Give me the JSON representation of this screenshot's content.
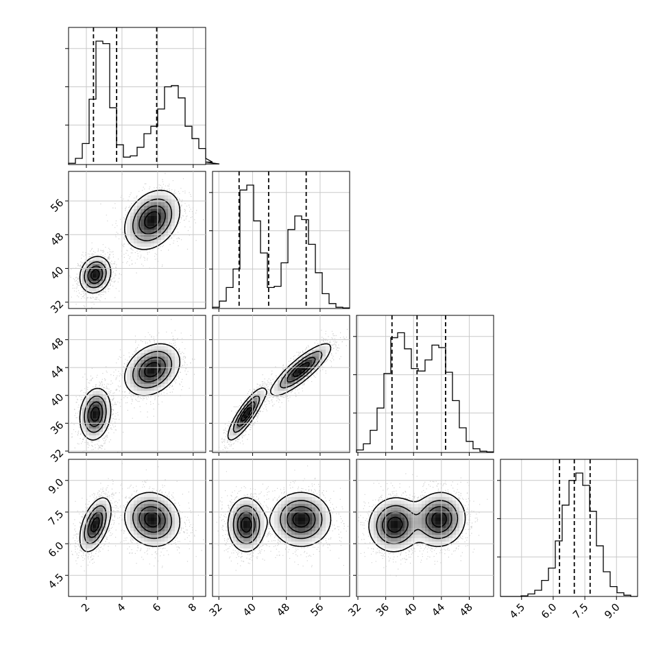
{
  "chart_data": {
    "type": "corner",
    "title": "",
    "parameters": [
      {
        "index": 0,
        "tick_values": [
          2,
          4,
          6,
          8
        ],
        "tick_labels": [
          "2",
          "4",
          "6",
          "8"
        ],
        "range": [
          1.0,
          8.7
        ],
        "quantiles": [
          2.4,
          3.7,
          5.95
        ]
      },
      {
        "index": 1,
        "tick_values": [
          32,
          40,
          48,
          56
        ],
        "tick_labels": [
          "32",
          "40",
          "48",
          "56"
        ],
        "range": [
          30.5,
          63.0
        ],
        "quantiles": [
          36.8,
          43.8,
          52.7
        ]
      },
      {
        "index": 2,
        "tick_values": [
          32,
          36,
          40,
          44,
          48
        ],
        "tick_labels": [
          "32",
          "36",
          "40",
          "44",
          "48"
        ],
        "range": [
          31.8,
          51.5
        ],
        "quantiles": [
          36.9,
          40.5,
          44.6
        ]
      },
      {
        "index": 3,
        "tick_values": [
          4.5,
          6.0,
          7.5,
          9.0
        ],
        "tick_labels": [
          "4.5",
          "6.0",
          "7.5",
          "9.0"
        ],
        "range": [
          3.5,
          10.0
        ],
        "quantiles": [
          6.3,
          7.0,
          7.75
        ]
      }
    ],
    "histograms": [
      {
        "param": 0,
        "bin_start": 1.0,
        "bin_width": 0.385,
        "counts": [
          0.01,
          0.05,
          0.17,
          0.53,
          1.0,
          0.98,
          0.46,
          0.16,
          0.06,
          0.07,
          0.14,
          0.25,
          0.31,
          0.45,
          0.63,
          0.64,
          0.54,
          0.31,
          0.21,
          0.13,
          0.05,
          0.02,
          0.005
        ]
      },
      {
        "param": 1,
        "bin_start": 30.5,
        "bin_width": 1.625,
        "counts": [
          0.01,
          0.06,
          0.17,
          0.32,
          0.96,
          1.0,
          0.71,
          0.45,
          0.17,
          0.18,
          0.37,
          0.64,
          0.75,
          0.72,
          0.52,
          0.29,
          0.12,
          0.04,
          0.01,
          0.005
        ]
      },
      {
        "param": 2,
        "bin_start": 31.8,
        "bin_width": 0.985,
        "counts": [
          0.02,
          0.07,
          0.18,
          0.36,
          0.64,
          0.93,
          0.97,
          0.84,
          0.68,
          0.66,
          0.75,
          0.87,
          0.85,
          0.65,
          0.42,
          0.2,
          0.09,
          0.03,
          0.01,
          0.005
        ]
      },
      {
        "param": 3,
        "bin_start": 3.5,
        "bin_width": 0.325,
        "counts": [
          0.0,
          0.0,
          0.0,
          0.005,
          0.02,
          0.05,
          0.13,
          0.23,
          0.45,
          0.74,
          0.94,
          1.0,
          0.9,
          0.69,
          0.41,
          0.2,
          0.08,
          0.03,
          0.01,
          0.0
        ]
      }
    ],
    "pairs": [
      {
        "x": 0,
        "y": 1,
        "modes": [
          {
            "x": 2.5,
            "y": 38.5,
            "sx": 0.42,
            "sy": 2.1,
            "rho": 0.15,
            "w": 0.5
          },
          {
            "x": 5.7,
            "y": 51.5,
            "sx": 0.75,
            "sy": 3.4,
            "rho": 0.3,
            "w": 0.5
          }
        ]
      },
      {
        "x": 0,
        "y": 2,
        "modes": [
          {
            "x": 2.5,
            "y": 37.3,
            "sx": 0.42,
            "sy": 1.8,
            "rho": 0.15,
            "w": 0.5
          },
          {
            "x": 5.7,
            "y": 43.7,
            "sx": 0.75,
            "sy": 1.8,
            "rho": 0.3,
            "w": 0.5
          }
        ]
      },
      {
        "x": 0,
        "y": 3,
        "modes": [
          {
            "x": 2.5,
            "y": 6.9,
            "sx": 0.42,
            "sy": 0.62,
            "rho": 0.5,
            "w": 0.5
          },
          {
            "x": 5.7,
            "y": 7.15,
            "sx": 0.75,
            "sy": 0.62,
            "rho": -0.1,
            "w": 0.5
          }
        ]
      },
      {
        "x": 1,
        "y": 2,
        "modes": [
          {
            "x": 38.5,
            "y": 37.3,
            "sx": 2.1,
            "sy": 1.8,
            "rho": 0.85,
            "w": 0.5
          },
          {
            "x": 51.5,
            "y": 43.7,
            "sx": 3.4,
            "sy": 1.8,
            "rho": 0.85,
            "w": 0.5
          }
        ]
      },
      {
        "x": 1,
        "y": 3,
        "modes": [
          {
            "x": 38.5,
            "y": 6.9,
            "sx": 2.1,
            "sy": 0.62,
            "rho": 0.0,
            "w": 0.5
          },
          {
            "x": 51.5,
            "y": 7.15,
            "sx": 3.4,
            "sy": 0.62,
            "rho": 0.0,
            "w": 0.5
          }
        ]
      },
      {
        "x": 2,
        "y": 3,
        "modes": [
          {
            "x": 37.3,
            "y": 6.9,
            "sx": 1.8,
            "sy": 0.62,
            "rho": 0.05,
            "w": 0.5
          },
          {
            "x": 43.7,
            "y": 7.15,
            "sx": 1.8,
            "sy": 0.62,
            "rho": 0.05,
            "w": 0.5
          }
        ]
      }
    ],
    "contour_levels": [
      0.12,
      0.35,
      0.62,
      0.85
    ],
    "grid": true,
    "legend": "none",
    "xlabel": "",
    "ylabel": ""
  }
}
